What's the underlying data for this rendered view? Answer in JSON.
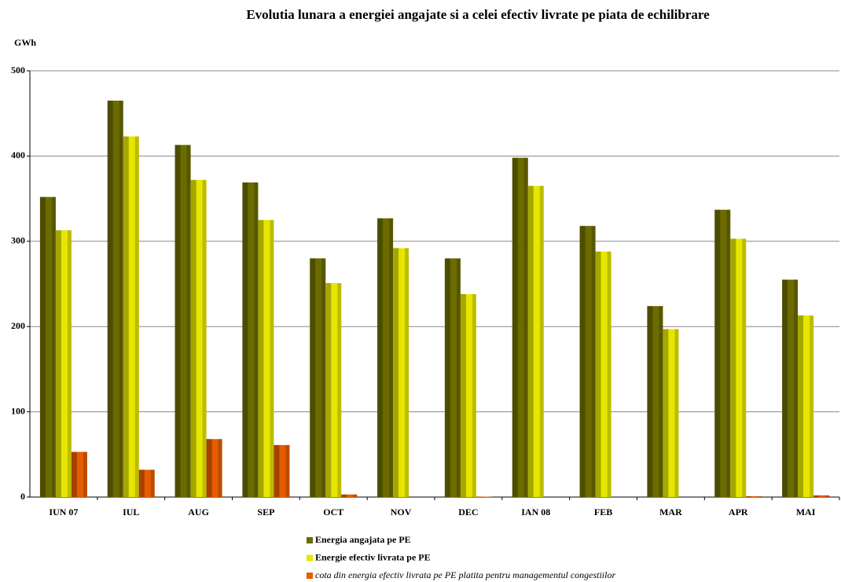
{
  "chart_data": {
    "type": "bar",
    "title": "Evolutia lunara a energiei angajate si a celei efectiv livrate pe piata de echilibrare",
    "y_label": "GWh",
    "categories": [
      "IUN 07",
      "IUL",
      "AUG",
      "SEP",
      "OCT",
      "NOV",
      "DEC",
      "IAN 08",
      "FEB",
      "MAR",
      "APR",
      "MAI"
    ],
    "series": [
      {
        "name": "Energia angajata pe PE",
        "color": "#6b6b00",
        "values": [
          352,
          465,
          413,
          369,
          280,
          327,
          280,
          398,
          318,
          224,
          337,
          255
        ]
      },
      {
        "name": "Energie efectiv livrata pe PE",
        "color": "#e6e600",
        "values": [
          313,
          423,
          372,
          325,
          251,
          292,
          238,
          365,
          288,
          197,
          303,
          213
        ]
      },
      {
        "name": "cota din energia efectiv livrata pe PE platita pentru managementul congestiilor",
        "color": "#e65c00",
        "values": [
          53,
          32,
          68,
          61,
          3,
          0,
          0.5,
          0,
          0,
          0,
          1,
          2
        ]
      }
    ],
    "ylim": [
      0,
      500
    ],
    "yticks": [
      0,
      100,
      200,
      300,
      400,
      500
    ],
    "grid": true
  }
}
